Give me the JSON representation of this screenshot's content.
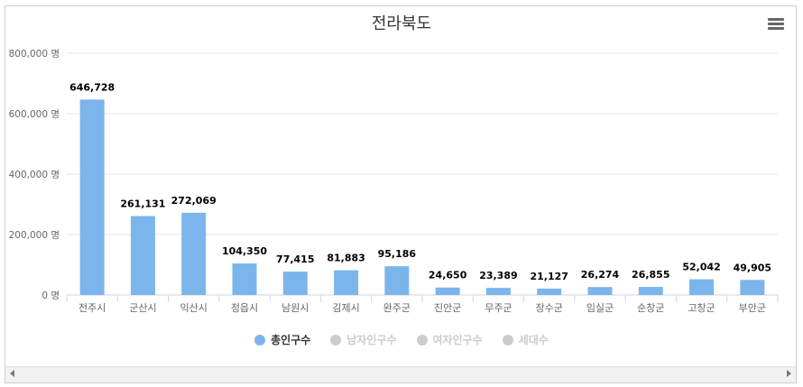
{
  "chart_data": {
    "type": "bar",
    "title": "전라북도",
    "categories": [
      "전주시",
      "군산시",
      "익산시",
      "정읍시",
      "남원시",
      "김제시",
      "완주군",
      "진안군",
      "무주군",
      "장수군",
      "임실군",
      "순창군",
      "고창군",
      "부안군"
    ],
    "series": [
      {
        "name": "총인구수",
        "values": [
          646728,
          261131,
          272069,
          104350,
          77415,
          81883,
          95186,
          24650,
          23389,
          21127,
          26274,
          26855,
          52042,
          49905
        ]
      }
    ],
    "data_labels": [
      "646,728",
      "261,131",
      "272,069",
      "104,350",
      "77,415",
      "81,883",
      "95,186",
      "24,650",
      "23,389",
      "21,127",
      "26,274",
      "26,855",
      "52,042",
      "49,905"
    ],
    "yticks": [
      "0 명",
      "200,000 명",
      "400,000 명",
      "600,000 명",
      "800,000 명"
    ],
    "ylim": [
      0,
      800000
    ],
    "grid": true,
    "legend_position": "bottom",
    "bar_color": "#7cb5ec"
  },
  "legend": [
    {
      "label": "총인구수",
      "active": true,
      "color": "#7cb5ec"
    },
    {
      "label": "남자인구수",
      "active": false,
      "color": "#cccccc"
    },
    {
      "label": "여자인구수",
      "active": false,
      "color": "#cccccc"
    },
    {
      "label": "세대수",
      "active": false,
      "color": "#cccccc"
    }
  ],
  "menu_icon": "hamburger-menu-icon"
}
